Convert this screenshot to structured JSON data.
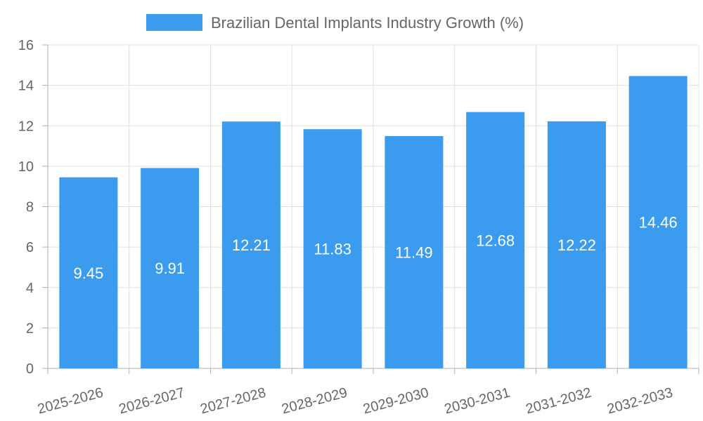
{
  "chart_data": {
    "type": "bar",
    "categories": [
      "2025-2026",
      "2026-2027",
      "2027-2028",
      "2028-2029",
      "2029-2030",
      "2030-2031",
      "2031-2032",
      "2032-2033"
    ],
    "series": [
      {
        "name": "Brazilian Dental Implants Industry Growth (%)",
        "values": [
          9.45,
          9.91,
          12.21,
          11.83,
          11.49,
          12.68,
          12.22,
          14.46
        ]
      }
    ],
    "ylim": [
      0,
      16
    ],
    "yticks": [
      0,
      2,
      4,
      6,
      8,
      10,
      12,
      14,
      16
    ],
    "grid": true,
    "legend_position": "top-center",
    "colors": {
      "bar": "#3a9bef",
      "grid": "#e0e0e0",
      "axis": "#b0b0b0",
      "text": "#666666",
      "label": "#ffffff"
    }
  }
}
